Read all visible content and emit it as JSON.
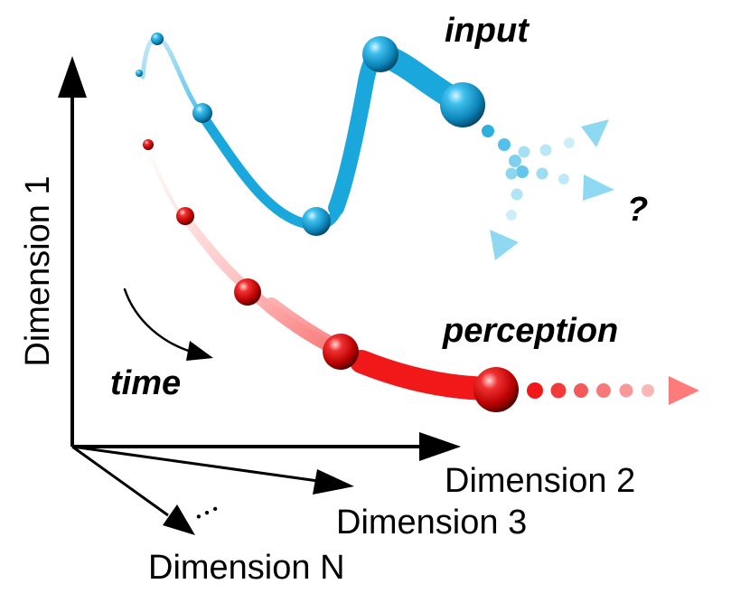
{
  "axes": {
    "dimension_1": "Dimension 1",
    "dimension_2": "Dimension 2",
    "dimension_3": "Dimension 3",
    "dimension_n": "Dimension N",
    "ellipsis": "• • •"
  },
  "labels": {
    "input": "input",
    "perception": "perception",
    "time": "time",
    "unknown": "?"
  },
  "colors": {
    "input": "#1aa7dc",
    "input_light": "#8ed8f2",
    "perception": "#e8141c",
    "perception_light": "#ff8a8a",
    "axis": "#000000"
  }
}
